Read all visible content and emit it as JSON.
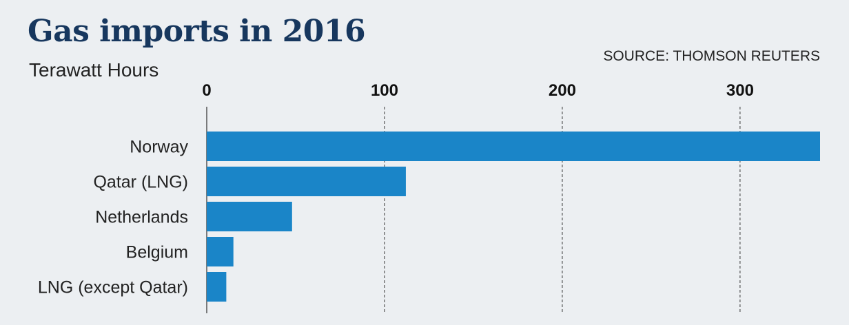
{
  "chart_data": {
    "type": "bar",
    "orientation": "horizontal",
    "title": "Gas imports in 2016",
    "subtitle": "Terawatt Hours",
    "source": "SOURCE: THOMSON REUTERS",
    "categories": [
      "Norway",
      "Qatar (LNG)",
      "Netherlands",
      "Belgium",
      "LNG (except Qatar)"
    ],
    "values": [
      345,
      112,
      48,
      15,
      11
    ],
    "xlim": [
      0,
      345
    ],
    "xticks": [
      0,
      100,
      200,
      300
    ],
    "tick_labels": [
      "0",
      "100",
      "200",
      "300"
    ],
    "axis_position": "top",
    "grid": "vertical dashed",
    "colors": {
      "bar": "#1a85c8",
      "title": "#17375e",
      "background": "#eceff2"
    }
  }
}
